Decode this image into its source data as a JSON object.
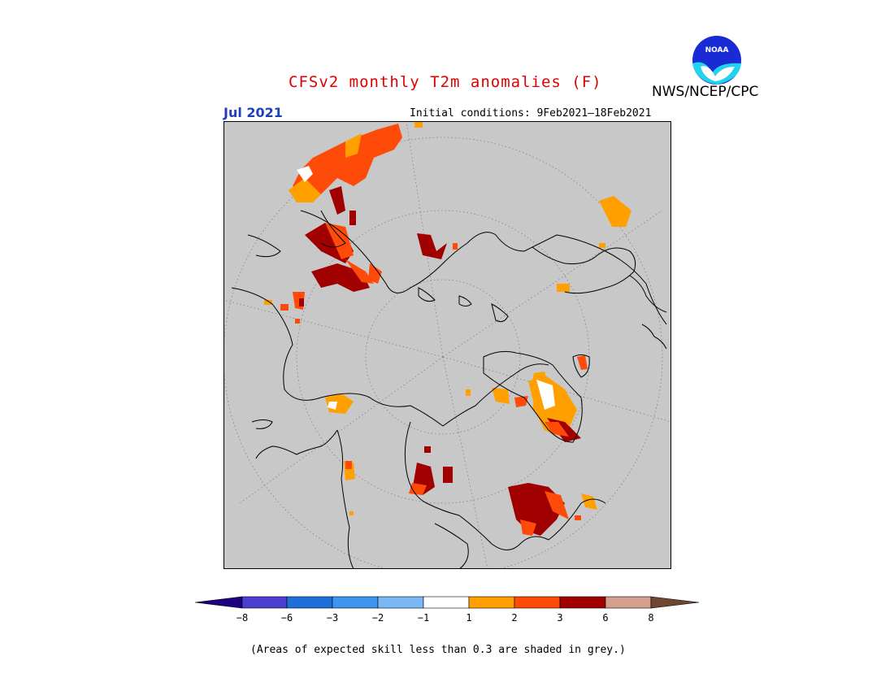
{
  "header": {
    "title": "CFSv2 monthly T2m anomalies (F)",
    "agency": "NWS/NCEP/CPC",
    "logo_text": "NOAA",
    "month": "Jul 2021",
    "initial_conditions": "Initial conditions: 9Feb2021–18Feb2021"
  },
  "map": {
    "projection": "north-polar-stereographic",
    "land_outline_color": "#000000",
    "skill_mask_color": "#c8c8c8"
  },
  "legend": {
    "colors": [
      "#1e0082",
      "#4b3fcf",
      "#1f6fd8",
      "#3c96ef",
      "#7ab8f5",
      "#ffffff",
      "#ffa000",
      "#ff4b0a",
      "#a00000",
      "#d2a08c",
      "#6e4632"
    ],
    "tick_labels": [
      "−8",
      "−6",
      "−3",
      "−2",
      "−1",
      "1",
      "2",
      "3",
      "6",
      "8"
    ]
  },
  "footnote": "(Areas of expected skill less than 0.3 are shaded in grey.)"
}
